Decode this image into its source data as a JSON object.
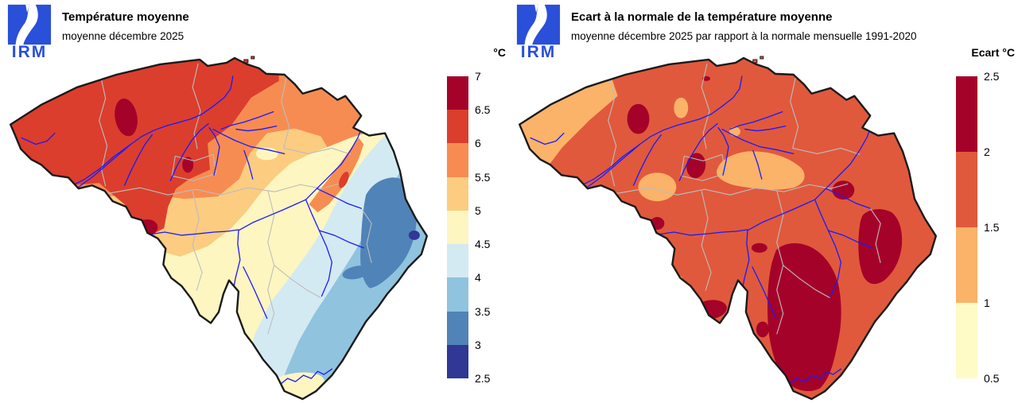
{
  "brand": {
    "logo_text": "IRM",
    "logo_color": "#2a4fd8"
  },
  "colors": {
    "map_border": "#1a1a1a",
    "province_border": "#bdbdbd",
    "river": "#1a1aff",
    "background": "#ffffff"
  },
  "panels": [
    {
      "title": "Température moyenne",
      "subtitle": "moyenne décembre 2025",
      "legend": {
        "title": "°C",
        "labels": [
          "7",
          "6.5",
          "6",
          "5.5",
          "5",
          "4.5",
          "4",
          "3.5",
          "3",
          "2.5"
        ],
        "colors": [
          "#a50229",
          "#db3e2d",
          "#f78c52",
          "#fccc80",
          "#fdf6c0",
          "#d4eaf2",
          "#90c3de",
          "#5083b8",
          "#303795"
        ]
      }
    },
    {
      "title": "Ecart à la normale de la température moyenne",
      "subtitle": "moyenne décembre 2025 par rapport à la normale mensuelle 1991-2020",
      "legend": {
        "title": "Ecart °C",
        "labels": [
          "2.5",
          "2",
          "1.5",
          "1",
          "0.5"
        ],
        "colors": [
          "#a50229",
          "#e0593c",
          "#fbb269",
          "#fefbc7"
        ]
      }
    }
  ]
}
